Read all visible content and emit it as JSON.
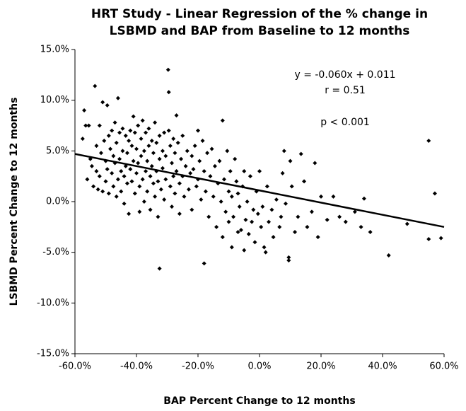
{
  "chart_data": {
    "type": "scatter",
    "title": [
      "HRT Study - Linear Regression of the % change in",
      "LSBMD and BAP from Baseline to 12 months"
    ],
    "x_label": "BAP Percent Change to 12 months",
    "y_label": "LSBMD Percent Change to 12 months",
    "annotations": [
      "y = -0.060x + 0.011",
      "r = 0.51",
      "p < 0.001"
    ],
    "color": "#000000",
    "grid": false,
    "xlim": [
      -60,
      60
    ],
    "ylim": [
      -15,
      15
    ],
    "xticks": [
      {
        "value": -60,
        "label": "-60.0%"
      },
      {
        "value": -40,
        "label": "-40.0%"
      },
      {
        "value": -20,
        "label": "-20.0%"
      },
      {
        "value": 0,
        "label": "0.0%"
      },
      {
        "value": 20,
        "label": "20.0%"
      },
      {
        "value": 40,
        "label": "40.0%"
      },
      {
        "value": 60,
        "label": "60.0%"
      }
    ],
    "yticks": [
      {
        "value": -15,
        "label": "-15.0%"
      },
      {
        "value": -10,
        "label": "-10.0%"
      },
      {
        "value": -5,
        "label": "-5.0%"
      },
      {
        "value": 0,
        "label": "0.0%"
      },
      {
        "value": 5,
        "label": "5.0%"
      },
      {
        "value": 10,
        "label": "10.0%"
      },
      {
        "value": 15,
        "label": "15.0%"
      }
    ],
    "fit_line": {
      "x": [
        -60,
        60
      ],
      "y": [
        4.7,
        -2.5
      ]
    },
    "x": [
      -57.5,
      -57,
      -56.5,
      -56,
      -55.5,
      -55,
      -54.5,
      -54,
      -53.5,
      -53,
      -53,
      -52.5,
      -52,
      -52,
      -51.5,
      -51,
      -51,
      -50.5,
      -50,
      -50,
      -49.5,
      -49.5,
      -49,
      -49,
      -48.5,
      -48,
      -48,
      -47.5,
      -47.5,
      -47,
      -47,
      -46.5,
      -46.5,
      -46,
      -46,
      -45.5,
      -45.5,
      -45,
      -45,
      -44.5,
      -44.5,
      -44,
      -44,
      -43.5,
      -43.5,
      -43,
      -43,
      -42.5,
      -42.5,
      -42,
      -42,
      -41.5,
      -41.5,
      -41,
      -41,
      -40.5,
      -40.5,
      -40,
      -40,
      -39.5,
      -39.5,
      -39,
      -39,
      -38.5,
      -38.5,
      -38,
      -38,
      -37.5,
      -37.5,
      -37,
      -37,
      -36.5,
      -36.5,
      -36,
      -36,
      -35.5,
      -35.5,
      -35,
      -35,
      -34.5,
      -34.5,
      -34,
      -34,
      -33.5,
      -33.5,
      -33,
      -33,
      -32.5,
      -32.5,
      -32,
      -31.5,
      -31.5,
      -31,
      -31,
      -30.5,
      -30.5,
      -32.5,
      -29.7,
      -29.5,
      -29.5,
      -29,
      -29,
      -28.5,
      -28.5,
      -28,
      -28,
      -27.5,
      -27.5,
      -27,
      -27,
      -26.5,
      -26,
      -26,
      -25.5,
      -25,
      -25,
      -24.5,
      -24,
      -23.5,
      -23,
      -22.5,
      -22,
      -22,
      -21.5,
      -21,
      -20.5,
      -20,
      -20,
      -19.5,
      -19,
      -18.5,
      -18,
      -18,
      -17.5,
      -17,
      -16.5,
      -16,
      -15.5,
      -15,
      -14.5,
      -14,
      -13.5,
      -13,
      -12.5,
      -12,
      -12,
      -11.5,
      -11,
      -10.5,
      -10,
      -10,
      -9.5,
      -9,
      -9,
      -8.5,
      -8,
      -7.5,
      -7,
      -7,
      -6.5,
      -6,
      -5.5,
      -5,
      -5,
      -4.5,
      -4,
      -3.5,
      -3,
      -2.5,
      -2,
      -1.5,
      -1,
      -0.5,
      0,
      0.5,
      1,
      1.5,
      2,
      2.5,
      3,
      4,
      4.5,
      5.5,
      6.5,
      7,
      7.5,
      8,
      8.5,
      9.5,
      9.5,
      10,
      10.5,
      11.5,
      12.5,
      13.5,
      14.5,
      15.5,
      17,
      18,
      19,
      20,
      22,
      24,
      26,
      28,
      31,
      33,
      34,
      36,
      42,
      48,
      55,
      55,
      57,
      59
    ],
    "values": [
      6.2,
      9,
      7.5,
      2.2,
      7.5,
      4.2,
      3.5,
      1.5,
      11.4,
      5.5,
      3.0,
      1.2,
      7.5,
      2.5,
      4.8,
      9.8,
      1.0,
      6.0,
      4.0,
      2.0,
      9.5,
      3.2,
      6.5,
      0.8,
      5.2,
      7.0,
      2.8,
      4.5,
      1.5,
      7.8,
      3.8,
      5.8,
      0.5,
      10.2,
      2.2,
      6.8,
      4.2,
      3.0,
      1.0,
      7.2,
      5.0,
      2.5,
      -0.2,
      6.5,
      3.5,
      4.8,
      1.8,
      6.0,
      -1.2,
      7.0,
      3.2,
      5.5,
      2.0,
      8.4,
      4.0,
      6.8,
      0.8,
      5.2,
      2.8,
      7.5,
      3.8,
      -1.0,
      1.5,
      6.2,
      4.5,
      8.0,
      2.2,
      5.0,
      0.0,
      6.8,
      3.0,
      4.0,
      1.0,
      7.2,
      5.5,
      2.5,
      -0.8,
      6.0,
      3.5,
      4.8,
      1.8,
      7.8,
      0.5,
      5.8,
      3.0,
      2.0,
      -1.5,
      6.5,
      4.2,
      1.2,
      5.0,
      3.3,
      6.8,
      0.2,
      4.5,
      2.2,
      -6.6,
      13.0,
      10.8,
      7.0,
      5.5,
      1.5,
      3.8,
      -0.5,
      6.2,
      2.5,
      4.8,
      0.8,
      8.5,
      3.0,
      5.8,
      1.8,
      -1.2,
      4.2,
      6.5,
      2.5,
      0.5,
      3.5,
      5.0,
      1.2,
      2.8,
      4.5,
      -0.8,
      3.2,
      5.5,
      1.5,
      7.0,
      2.2,
      4.0,
      0.2,
      6.0,
      -6.1,
      3.0,
      1.0,
      4.8,
      -1.5,
      2.5,
      5.2,
      0.5,
      3.5,
      -2.5,
      1.8,
      4.0,
      0.0,
      -3.5,
      8.0,
      2.2,
      -1.0,
      5.0,
      1.0,
      -2.0,
      3.0,
      -4.5,
      0.5,
      -1.5,
      4.2,
      2.0,
      -3.0,
      0.8,
      -0.5,
      -2.8,
      1.5,
      -4.8,
      3.0,
      -1.8,
      0.0,
      -3.2,
      2.5,
      -2.0,
      -0.8,
      -4.0,
      1.0,
      -1.2,
      3.0,
      -2.5,
      -0.5,
      -4.5,
      -5.0,
      1.5,
      -2.0,
      -0.8,
      -3.5,
      0.2,
      -2.5,
      -1.5,
      2.8,
      5.0,
      -0.2,
      -5.8,
      -5.5,
      4.0,
      1.5,
      -3.0,
      -1.5,
      4.7,
      2.0,
      -2.5,
      -1.0,
      3.8,
      -3.5,
      0.5,
      -1.8,
      0.5,
      -1.5,
      -2.0,
      -1.0,
      -2.5,
      0.3,
      -3.0,
      -5.3,
      -2.2,
      6.0,
      -3.7,
      0.8,
      -3.6
    ]
  }
}
